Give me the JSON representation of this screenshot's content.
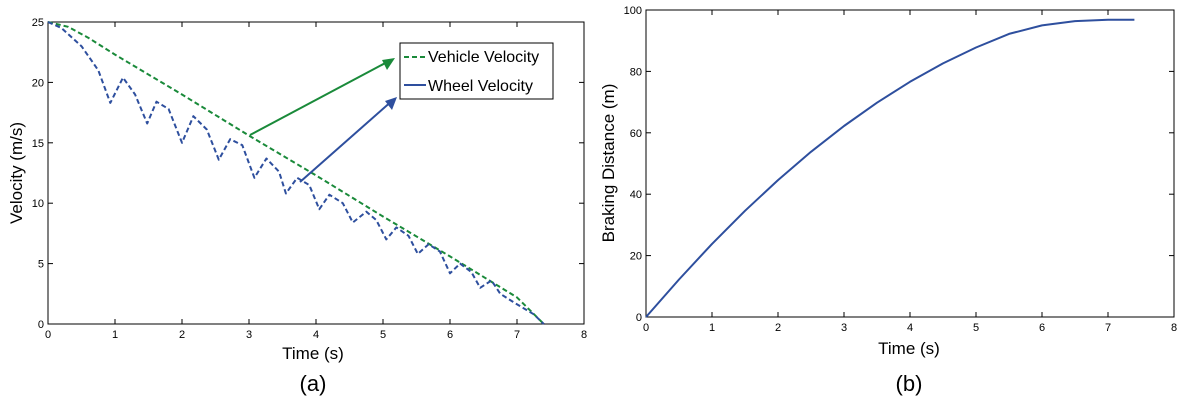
{
  "chart_data": [
    {
      "type": "line",
      "panel_label": "(a)",
      "xlabel": "Time (s)",
      "ylabel": "Velocity (m/s)",
      "xlim": [
        0,
        8
      ],
      "ylim": [
        0,
        25
      ],
      "xticks": [
        0,
        1,
        2,
        3,
        4,
        5,
        6,
        7,
        8
      ],
      "yticks": [
        0,
        5,
        10,
        15,
        20,
        25
      ],
      "grid": false,
      "legend_position": "top-right",
      "series": [
        {
          "name": "Vehicle Velocity",
          "color": "#1a8a3a",
          "style": "dashed",
          "x": [
            0,
            0.3,
            0.6,
            1.0,
            2.0,
            3.0,
            4.0,
            5.0,
            6.0,
            7.0,
            7.4
          ],
          "y": [
            25.0,
            24.6,
            23.7,
            22.3,
            19.0,
            15.6,
            12.3,
            8.9,
            5.6,
            2.2,
            0.0
          ]
        },
        {
          "name": "Wheel Velocity",
          "color": "#2e4f9e",
          "style": "dashed",
          "x": [
            0,
            0.2,
            0.5,
            0.75,
            0.93,
            1.12,
            1.3,
            1.48,
            1.62,
            1.8,
            2.0,
            2.17,
            2.37,
            2.55,
            2.72,
            2.9,
            3.08,
            3.26,
            3.45,
            3.55,
            3.72,
            3.9,
            4.05,
            4.2,
            4.4,
            4.55,
            4.75,
            4.9,
            5.05,
            5.2,
            5.38,
            5.52,
            5.68,
            5.85,
            6.0,
            6.15,
            6.32,
            6.45,
            6.62,
            6.75,
            6.95,
            7.1,
            7.25,
            7.4
          ],
          "y": [
            25.0,
            24.5,
            23.0,
            21.0,
            18.3,
            20.4,
            19.0,
            16.6,
            18.4,
            17.8,
            15.0,
            17.2,
            16.1,
            13.6,
            15.3,
            14.8,
            12.1,
            13.7,
            12.6,
            10.8,
            12.1,
            11.5,
            9.5,
            10.7,
            10.0,
            8.4,
            9.3,
            8.6,
            7.0,
            8.0,
            7.3,
            5.8,
            6.6,
            6.0,
            4.2,
            5.0,
            4.3,
            3.0,
            3.6,
            2.5,
            1.8,
            1.3,
            0.8,
            0.0
          ]
        }
      ]
    },
    {
      "type": "line",
      "panel_label": "(b)",
      "xlabel": "Time (s)",
      "ylabel": "Braking Distance (m)",
      "xlim": [
        0,
        8
      ],
      "ylim": [
        0,
        100
      ],
      "xticks": [
        0,
        1,
        2,
        3,
        4,
        5,
        6,
        7,
        8
      ],
      "yticks": [
        0,
        20,
        40,
        60,
        80,
        100
      ],
      "grid": false,
      "series": [
        {
          "color": "#2e4f9e",
          "style": "solid",
          "x": [
            0,
            0.5,
            1.0,
            1.5,
            2.0,
            2.5,
            3.0,
            3.5,
            4.0,
            4.5,
            5.0,
            5.5,
            6.0,
            6.5,
            7.0,
            7.4
          ],
          "y": [
            0,
            12.2,
            23.8,
            34.6,
            44.6,
            53.8,
            62.2,
            69.8,
            76.6,
            82.6,
            87.8,
            92.2,
            95.0,
            96.4,
            96.8,
            96.8
          ]
        }
      ]
    }
  ]
}
